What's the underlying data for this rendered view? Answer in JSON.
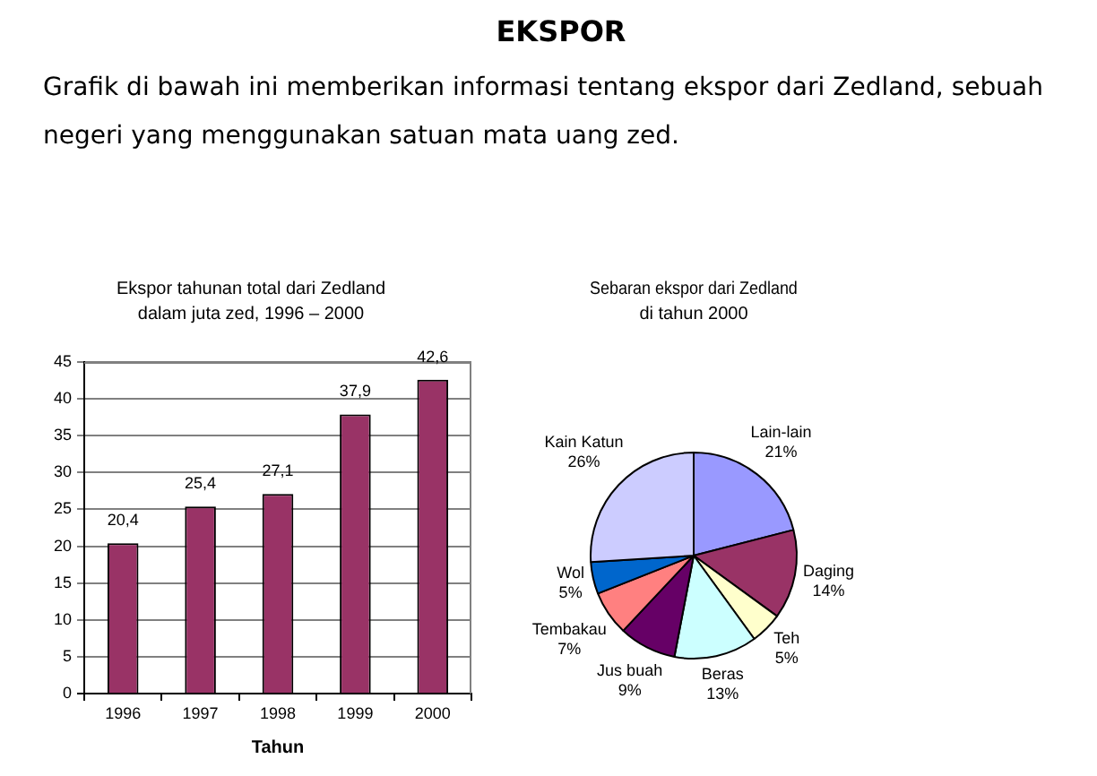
{
  "chart_data": [
    {
      "type": "other",
      "title": "EKSPOR",
      "subtitle": "Grafik di bawah ini memberikan informasi tentang ekspor dari Zedland, sebuah negeri yang menggunakan satuan mata uang zed."
    },
    {
      "type": "bar",
      "title": "Ekspor tahunan total dari Zedland\ndalam juta zed, 1996 – 2000",
      "xlabel": "Tahun",
      "categories": [
        "1996",
        "1997",
        "1998",
        "1999",
        "2000"
      ],
      "values": [
        20.4,
        25.4,
        27.1,
        37.9,
        42.6
      ],
      "value_labels": [
        "20,4",
        "25,4",
        "27,1",
        "37,9",
        "42,6"
      ],
      "color": "#993366",
      "ylim": [
        0,
        45
      ],
      "yticks": [
        0,
        5,
        10,
        15,
        20,
        25,
        30,
        35,
        40,
        45
      ],
      "grid": "y"
    },
    {
      "type": "pie",
      "title": "Sebaran ekspor dari Zedland\ndi tahun 2000",
      "categories": [
        "Lain-lain",
        "Daging",
        "Teh",
        "Beras",
        "Jus buah",
        "Tembakau",
        "Wol",
        "Kain Katun"
      ],
      "values": [
        21,
        14,
        5,
        13,
        9,
        7,
        5,
        26
      ],
      "value_labels": [
        "21%",
        "14%",
        "5%",
        "13%",
        "9%",
        "7%",
        "5%",
        "26%"
      ],
      "colors": [
        "#9999ff",
        "#993366",
        "#ffffcc",
        "#ccffff",
        "#660066",
        "#ff8080",
        "#0066cc",
        "#ccccff"
      ]
    }
  ]
}
